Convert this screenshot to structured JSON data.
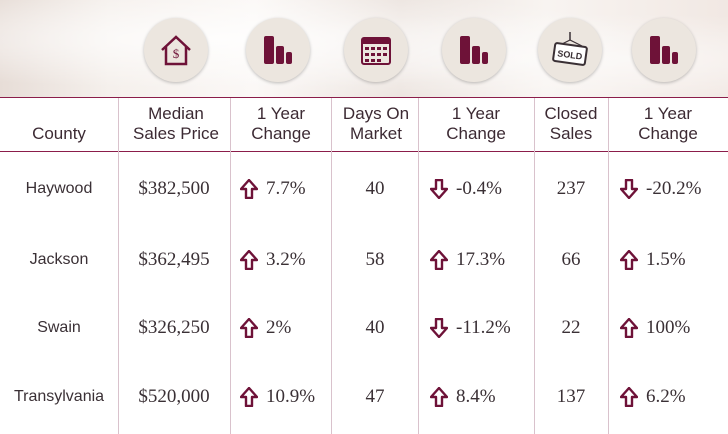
{
  "icons": [
    "house-dollar-icon",
    "bar-chart-icon",
    "calendar-icon",
    "bar-chart-icon",
    "sold-sign-icon",
    "bar-chart-icon"
  ],
  "icons_text": {
    "sold": "SOLD"
  },
  "colors": {
    "accent": "#6e1238",
    "rule": "#8b1d4a",
    "icon_bg": "#ece6df"
  },
  "table": {
    "headers": [
      "County",
      "Median Sales Price",
      "1 Year Change",
      "Days On Market",
      "1 Year Change",
      "Closed Sales",
      "1 Year Change"
    ],
    "rows": [
      {
        "county": "Haywood",
        "price": "$382,500",
        "price_change": {
          "dir": "up",
          "value": "7.7%"
        },
        "dom": "40",
        "dom_change": {
          "dir": "down",
          "value": "-0.4%"
        },
        "closed": "237",
        "closed_change": {
          "dir": "down",
          "value": "-20.2%"
        }
      },
      {
        "county": "Jackson",
        "price": "$362,495",
        "price_change": {
          "dir": "up",
          "value": "3.2%"
        },
        "dom": "58",
        "dom_change": {
          "dir": "up",
          "value": "17.3%"
        },
        "closed": "66",
        "closed_change": {
          "dir": "up",
          "value": "1.5%"
        }
      },
      {
        "county": "Swain",
        "price": "$326,250",
        "price_change": {
          "dir": "up",
          "value": "2%"
        },
        "dom": "40",
        "dom_change": {
          "dir": "down",
          "value": "-11.2%"
        },
        "closed": "22",
        "closed_change": {
          "dir": "up",
          "value": "100%"
        }
      },
      {
        "county": "Transylvania",
        "price": "$520,000",
        "price_change": {
          "dir": "up",
          "value": "10.9%"
        },
        "dom": "47",
        "dom_change": {
          "dir": "up",
          "value": "8.4%"
        },
        "closed": "137",
        "closed_change": {
          "dir": "up",
          "value": "6.2%"
        }
      }
    ]
  }
}
